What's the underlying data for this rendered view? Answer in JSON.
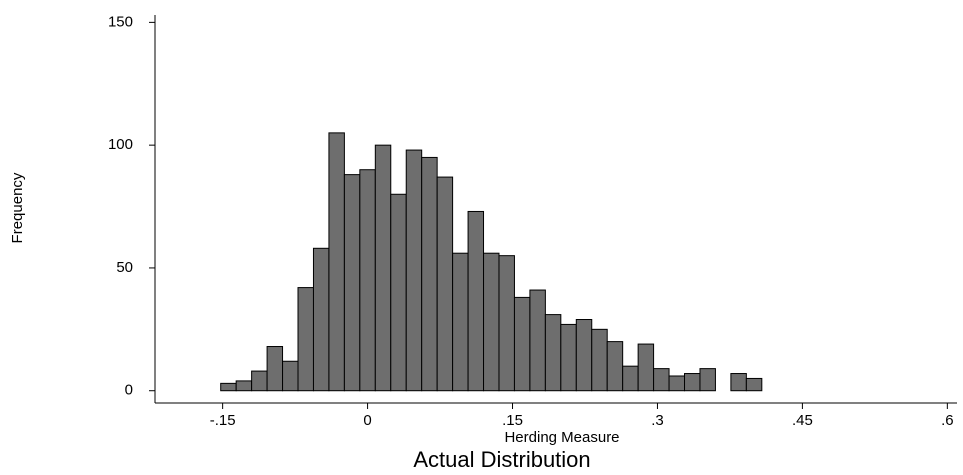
{
  "chart_data": {
    "type": "histogram",
    "title": "Actual Distribution",
    "x_label": "Herding Measure",
    "y_label": "Frequency",
    "bins": [
      -0.152,
      -0.136,
      -0.12,
      -0.104,
      -0.088,
      -0.072,
      -0.056,
      -0.04,
      -0.024,
      -0.008,
      0.008,
      0.024,
      0.04,
      0.056,
      0.072,
      0.088,
      0.104,
      0.12,
      0.136,
      0.152,
      0.168,
      0.184,
      0.2,
      0.216,
      0.232,
      0.248,
      0.264,
      0.28,
      0.296,
      0.312,
      0.328,
      0.344,
      0.36,
      0.376,
      0.392,
      0.408
    ],
    "values": [
      3,
      4,
      8,
      18,
      12,
      42,
      58,
      105,
      88,
      90,
      100,
      80,
      98,
      95,
      87,
      56,
      73,
      56,
      55,
      38,
      41,
      31,
      27,
      29,
      25,
      20,
      10,
      19,
      9,
      6,
      7,
      9,
      0,
      7,
      5
    ],
    "color": "#6e6e6e",
    "xlim": [
      -0.22,
      0.61
    ],
    "ylim": [
      -5,
      153
    ],
    "xticks": [
      {
        "value": -0.15,
        "label": "-.15"
      },
      0,
      {
        "value": 0.15,
        "label": ".15"
      },
      {
        "value": 0.3,
        "label": ".3"
      },
      {
        "value": 0.45,
        "label": ".45"
      },
      {
        "value": 0.6,
        "label": ".6"
      }
    ],
    "yticks": [
      0,
      50,
      100,
      150
    ]
  }
}
